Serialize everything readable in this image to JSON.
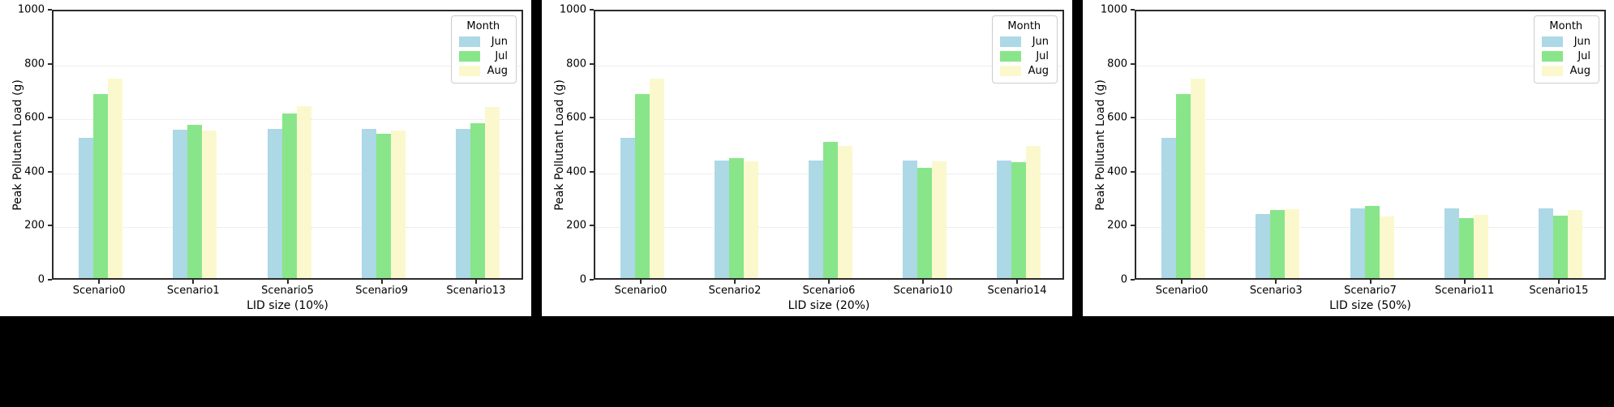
{
  "page": {
    "background": "#000000",
    "panel_background": "#ffffff"
  },
  "colors": {
    "grid": "#dedede",
    "spine": "#2b2b2b",
    "text": "#000000",
    "jun": "#ADD8E6",
    "jul": "#89E589",
    "aug": "#FBF8CD"
  },
  "legend": {
    "title": "Month",
    "position": "upper right",
    "items": [
      {
        "label": "Jun",
        "color": "#ADD8E6"
      },
      {
        "label": "Jul",
        "color": "#89E589"
      },
      {
        "label": "Aug",
        "color": "#FBF8CD"
      }
    ]
  },
  "chart_data": [
    {
      "type": "bar",
      "title": "",
      "xlabel": "LID size (10%)",
      "ylabel": "Peak Pollutant Load (g)",
      "ylim": [
        0,
        1000
      ],
      "yticks": [
        0,
        200,
        400,
        600,
        800,
        1000
      ],
      "grid": true,
      "legend_title": "Month",
      "legend_position": "upper right",
      "categories": [
        "Scenario0",
        "Scenario1",
        "Scenario5",
        "Scenario9",
        "Scenario13"
      ],
      "series": [
        {
          "name": "Jun",
          "color": "#ADD8E6",
          "values": [
            520,
            551,
            552,
            552,
            552
          ]
        },
        {
          "name": "Jul",
          "color": "#89E589",
          "values": [
            681,
            569,
            611,
            534,
            575
          ]
        },
        {
          "name": "Aug",
          "color": "#FBF8CD",
          "values": [
            740,
            548,
            636,
            548,
            635
          ]
        }
      ]
    },
    {
      "type": "bar",
      "title": "",
      "xlabel": "LID size (20%)",
      "ylabel": "Peak Pollutant Load (g)",
      "ylim": [
        0,
        1000
      ],
      "yticks": [
        0,
        200,
        400,
        600,
        800,
        1000
      ],
      "grid": true,
      "legend_title": "Month",
      "legend_position": "upper right",
      "categories": [
        "Scenario0",
        "Scenario2",
        "Scenario6",
        "Scenario10",
        "Scenario14"
      ],
      "series": [
        {
          "name": "Jun",
          "color": "#ADD8E6",
          "values": [
            520,
            434,
            434,
            434,
            434
          ]
        },
        {
          "name": "Jul",
          "color": "#89E589",
          "values": [
            681,
            445,
            505,
            408,
            430
          ]
        },
        {
          "name": "Aug",
          "color": "#FBF8CD",
          "values": [
            740,
            432,
            490,
            432,
            490
          ]
        }
      ]
    },
    {
      "type": "bar",
      "title": "",
      "xlabel": "LID size (50%)",
      "ylabel": "Peak Pollutant Load (g)",
      "ylim": [
        0,
        1000
      ],
      "yticks": [
        0,
        200,
        400,
        600,
        800,
        1000
      ],
      "grid": true,
      "legend_title": "Month",
      "legend_position": "upper right",
      "categories": [
        "Scenario0",
        "Scenario3",
        "Scenario7",
        "Scenario11",
        "Scenario15"
      ],
      "series": [
        {
          "name": "Jun",
          "color": "#ADD8E6",
          "values": [
            520,
            238,
            258,
            258,
            258
          ]
        },
        {
          "name": "Jul",
          "color": "#89E589",
          "values": [
            681,
            253,
            267,
            221,
            232
          ]
        },
        {
          "name": "Aug",
          "color": "#FBF8CD",
          "values": [
            740,
            254,
            227,
            235,
            253
          ]
        }
      ]
    }
  ]
}
